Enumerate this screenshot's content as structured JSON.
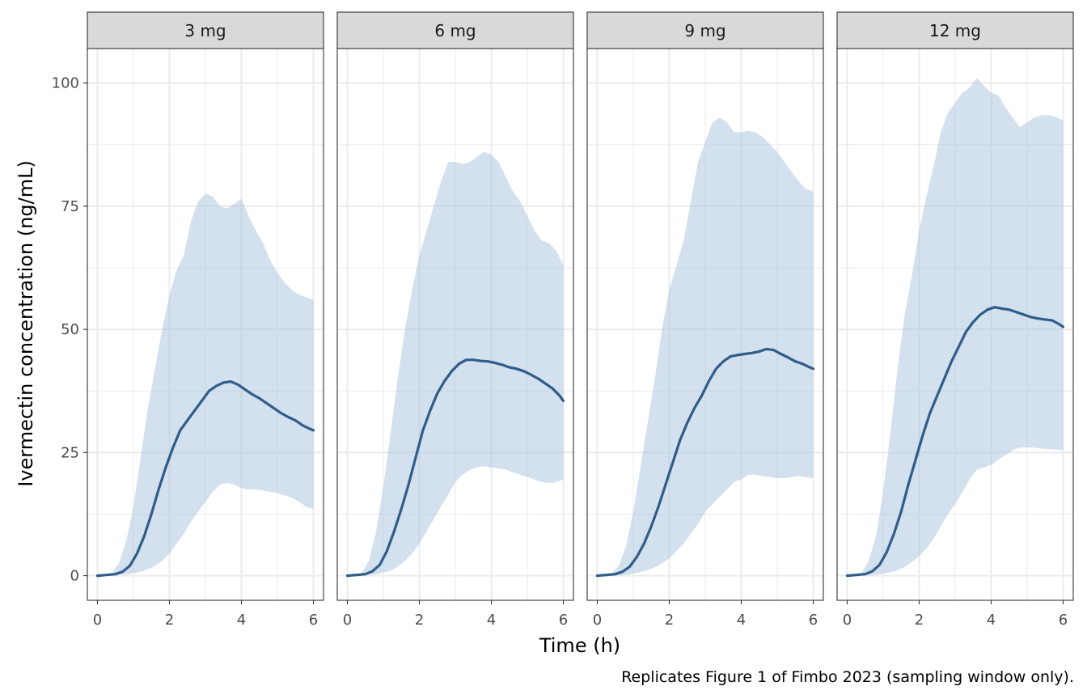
{
  "chart_data": {
    "type": "area",
    "xlabel": "Time (h)",
    "ylabel": "Ivermectin concentration (ng/mL)",
    "caption": "Replicates Figure 1 of Fimbo 2023 (sampling window only).",
    "xlim": [
      -0.28,
      6.28
    ],
    "ylim": [
      -5,
      107
    ],
    "x_ticks": [
      0,
      2,
      4,
      6
    ],
    "x_tick_labels": [
      "0",
      "2",
      "4",
      "6"
    ],
    "y_ticks": [
      0,
      25,
      50,
      75,
      100
    ],
    "y_tick_labels": [
      "0",
      "25",
      "50",
      "75",
      "100"
    ],
    "grid": true,
    "colors": {
      "ribbon": "#a7c1de",
      "median": "#2f5d8a",
      "strip": "#d9d9d9"
    },
    "panels": [
      {
        "label": "3 mg",
        "median": {
          "x": [
            0,
            0.5,
            0.7,
            0.9,
            1.1,
            1.3,
            1.5,
            1.7,
            1.9,
            2.1,
            2.3,
            2.5,
            2.7,
            2.9,
            3.1,
            3.3,
            3.5,
            3.7,
            3.9,
            4.1,
            4.3,
            4.5,
            4.7,
            4.9,
            5.1,
            5.3,
            5.5,
            5.7,
            5.9,
            6.0
          ],
          "y": [
            0,
            0.3,
            0.8,
            2,
            4.5,
            8,
            12.5,
            17.5,
            22,
            26,
            29.5,
            31.5,
            33.5,
            35.5,
            37.5,
            38.5,
            39.2,
            39.4,
            38.8,
            37.8,
            36.8,
            36,
            35,
            34,
            33,
            32.2,
            31.5,
            30.5,
            29.8,
            29.5
          ]
        },
        "ribbon": {
          "x": [
            0,
            0.4,
            0.6,
            0.8,
            1.0,
            1.2,
            1.4,
            1.6,
            1.8,
            2.0,
            2.2,
            2.4,
            2.6,
            2.8,
            3.0,
            3.2,
            3.4,
            3.6,
            3.8,
            4.0,
            4.2,
            4.4,
            4.6,
            4.8,
            5.0,
            5.2,
            5.4,
            5.6,
            5.8,
            6.0
          ],
          "lower": [
            0,
            0,
            0.2,
            0.3,
            0.5,
            0.8,
            1.3,
            2,
            3,
            4.5,
            6.5,
            8.5,
            11,
            13,
            15,
            17,
            18.5,
            18.8,
            18.5,
            17.8,
            17.5,
            17.5,
            17.3,
            17,
            16.8,
            16.3,
            15.8,
            15,
            14,
            13.5
          ],
          "upper": [
            0,
            0.5,
            2.5,
            7,
            14,
            24,
            34,
            42,
            50,
            57,
            62,
            65,
            72,
            76,
            77.5,
            77,
            75,
            74.5,
            75.5,
            76.5,
            73,
            70,
            67.5,
            64,
            61.5,
            59.5,
            58,
            57,
            56.5,
            56
          ]
        }
      },
      {
        "label": "6 mg",
        "median": {
          "x": [
            0,
            0.5,
            0.7,
            0.9,
            1.1,
            1.3,
            1.5,
            1.7,
            1.9,
            2.1,
            2.3,
            2.5,
            2.7,
            2.9,
            3.1,
            3.3,
            3.5,
            3.7,
            3.9,
            4.1,
            4.3,
            4.5,
            4.7,
            4.9,
            5.1,
            5.3,
            5.5,
            5.7,
            5.9,
            6.0
          ],
          "y": [
            0,
            0.3,
            0.9,
            2.2,
            5,
            9,
            13.5,
            18.5,
            24,
            29.5,
            33.5,
            37,
            39.5,
            41.5,
            43,
            43.8,
            43.8,
            43.6,
            43.5,
            43.2,
            42.8,
            42.3,
            42,
            41.5,
            40.8,
            40,
            39,
            38,
            36.5,
            35.5
          ]
        },
        "ribbon": {
          "x": [
            0,
            0.4,
            0.6,
            0.8,
            1.0,
            1.2,
            1.4,
            1.6,
            1.8,
            2.0,
            2.2,
            2.4,
            2.6,
            2.8,
            3.0,
            3.2,
            3.4,
            3.6,
            3.8,
            4.0,
            4.2,
            4.4,
            4.6,
            4.8,
            5.0,
            5.2,
            5.4,
            5.6,
            5.8,
            6.0
          ],
          "lower": [
            0,
            0,
            0.2,
            0.3,
            0.6,
            1,
            1.8,
            3,
            4.5,
            6.5,
            9,
            11.5,
            14,
            16.5,
            19,
            20.5,
            21.5,
            22,
            22.2,
            22,
            21.8,
            21.5,
            21,
            20.5,
            20,
            19.5,
            19,
            18.8,
            19,
            19.5
          ],
          "upper": [
            0,
            0.5,
            3,
            9,
            18,
            29,
            40,
            50,
            58,
            65,
            70,
            75,
            80,
            84,
            84,
            83.5,
            84,
            85,
            86,
            85.5,
            84,
            81,
            78,
            76,
            73,
            70,
            68,
            67.5,
            66,
            63
          ]
        }
      },
      {
        "label": "9 mg",
        "median": {
          "x": [
            0,
            0.5,
            0.7,
            0.9,
            1.1,
            1.3,
            1.5,
            1.7,
            1.9,
            2.1,
            2.3,
            2.5,
            2.7,
            2.9,
            3.1,
            3.3,
            3.5,
            3.7,
            3.9,
            4.1,
            4.3,
            4.5,
            4.7,
            4.9,
            5.1,
            5.3,
            5.5,
            5.7,
            5.9,
            6.0
          ],
          "y": [
            0,
            0.3,
            0.8,
            1.8,
            3.8,
            6.5,
            10,
            14,
            18.5,
            23,
            27.5,
            31,
            34,
            36.5,
            39.5,
            42,
            43.5,
            44.5,
            44.8,
            45,
            45.2,
            45.5,
            46,
            45.8,
            45,
            44.3,
            43.5,
            43,
            42.3,
            42
          ]
        },
        "ribbon": {
          "x": [
            0,
            0.4,
            0.6,
            0.8,
            1.0,
            1.2,
            1.4,
            1.6,
            1.8,
            2.0,
            2.2,
            2.4,
            2.6,
            2.8,
            3.0,
            3.2,
            3.4,
            3.6,
            3.8,
            4.0,
            4.2,
            4.4,
            4.6,
            4.8,
            5.0,
            5.2,
            5.4,
            5.6,
            5.8,
            6.0
          ],
          "lower": [
            0,
            0,
            0.1,
            0.2,
            0.4,
            0.7,
            1.1,
            1.7,
            2.5,
            3.5,
            5,
            6.5,
            8.5,
            10.5,
            13,
            14.5,
            16,
            17.5,
            19,
            19.5,
            20.5,
            20.5,
            20.2,
            20,
            19.8,
            19.8,
            20,
            20.2,
            20,
            19.8
          ],
          "upper": [
            0,
            0.4,
            2,
            6,
            13,
            22,
            31,
            40,
            50,
            58,
            63,
            68,
            76,
            84,
            88,
            92,
            93,
            92,
            90,
            90,
            90.3,
            90,
            89,
            87.5,
            86,
            84,
            82,
            80,
            78.5,
            78
          ]
        }
      },
      {
        "label": "12 mg",
        "median": {
          "x": [
            0,
            0.5,
            0.7,
            0.9,
            1.1,
            1.3,
            1.5,
            1.7,
            1.9,
            2.1,
            2.3,
            2.5,
            2.7,
            2.9,
            3.1,
            3.3,
            3.5,
            3.7,
            3.9,
            4.1,
            4.3,
            4.5,
            4.7,
            4.9,
            5.1,
            5.3,
            5.5,
            5.7,
            5.9,
            6.0
          ],
          "y": [
            0,
            0.3,
            0.9,
            2.2,
            4.8,
            8.5,
            13,
            18.5,
            23.5,
            28.5,
            33,
            36.5,
            40,
            43.5,
            46.5,
            49.5,
            51.5,
            53,
            54,
            54.5,
            54.2,
            54,
            53.5,
            53,
            52.5,
            52.2,
            52,
            51.8,
            51,
            50.5
          ]
        },
        "ribbon": {
          "x": [
            0,
            0.4,
            0.6,
            0.8,
            1.0,
            1.2,
            1.4,
            1.6,
            1.8,
            2.0,
            2.2,
            2.4,
            2.6,
            2.8,
            3.0,
            3.2,
            3.4,
            3.6,
            3.8,
            4.0,
            4.2,
            4.4,
            4.6,
            4.8,
            5.0,
            5.2,
            5.4,
            5.6,
            5.8,
            6.0
          ],
          "lower": [
            0,
            0,
            0.1,
            0.2,
            0.4,
            0.7,
            1.1,
            1.8,
            2.8,
            4,
            5.5,
            7.5,
            10,
            12.5,
            14.5,
            17,
            19.5,
            21.5,
            22,
            22.5,
            23.5,
            24.5,
            25.5,
            26,
            26,
            26,
            25.8,
            25.7,
            25.6,
            25.5
          ],
          "upper": [
            0,
            0.5,
            3,
            8,
            17,
            29,
            42,
            53,
            61,
            70,
            77,
            83,
            90,
            94,
            96,
            98,
            99,
            101,
            99.5,
            98,
            97.5,
            95,
            93,
            91,
            92,
            93,
            93.5,
            93.5,
            93,
            92.5
          ]
        }
      }
    ]
  }
}
